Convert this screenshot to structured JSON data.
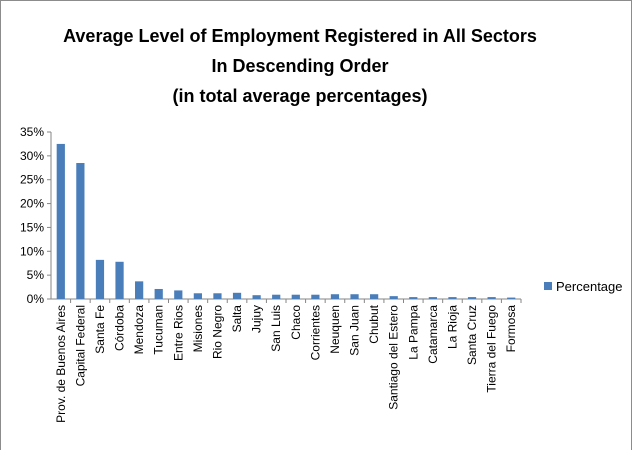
{
  "chart_data": {
    "type": "bar",
    "title_lines": [
      "Average Level of Employment Registered in All Sectors",
      "In Descending Order",
      "(in total average percentages)"
    ],
    "categories": [
      "Prov. de Buenos Aires",
      "Capital Federal",
      "Santa Fe",
      "Córdoba",
      "Mendoza",
      "Tucuman",
      "Entre Rios",
      "Misiones",
      "Rio Negro",
      "Salta",
      "Jujuy",
      "San Luis",
      "Chaco",
      "Corrientes",
      "Neuquen",
      "San Juan",
      "Chubut",
      "Santiago del Estero",
      "La Pampa",
      "Catamarca",
      "La Rioja",
      "Santa Cruz",
      "Tierra del Fuego",
      "Formosa"
    ],
    "series": [
      {
        "name": "Percentage",
        "values": [
          32.5,
          28.5,
          8.2,
          7.8,
          3.7,
          2.1,
          1.8,
          1.2,
          1.2,
          1.3,
          0.8,
          0.9,
          0.9,
          0.9,
          1.0,
          1.0,
          1.0,
          0.6,
          0.4,
          0.4,
          0.4,
          0.4,
          0.4,
          0.3
        ]
      }
    ],
    "yticks": [
      "0%",
      "5%",
      "10%",
      "15%",
      "20%",
      "25%",
      "30%",
      "35%"
    ],
    "ylim": [
      0,
      35
    ],
    "legend_position": "right",
    "grid": false,
    "bar_color": "#4a7ebb"
  }
}
